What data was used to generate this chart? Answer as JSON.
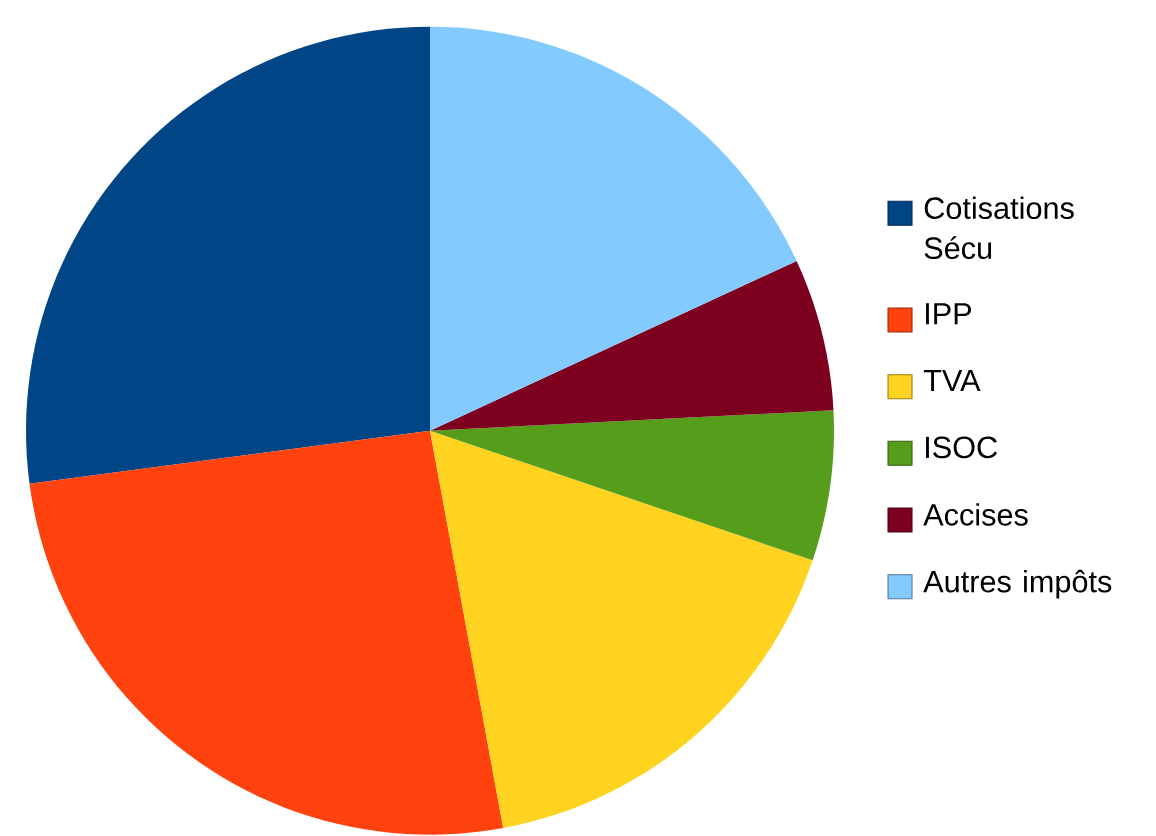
{
  "chart_data": {
    "type": "pie",
    "categories": [
      "Cotisations Sécu",
      "IPP",
      "TVA",
      "ISOC",
      "Accises",
      "Autres impôts"
    ],
    "values": [
      27.1,
      25.8,
      16.9,
      6.0,
      6.1,
      18.1
    ],
    "colors": [
      "#004586",
      "#ff420e",
      "#ffd320",
      "#579d1c",
      "#7e0021",
      "#83caff"
    ],
    "legend": "right"
  }
}
